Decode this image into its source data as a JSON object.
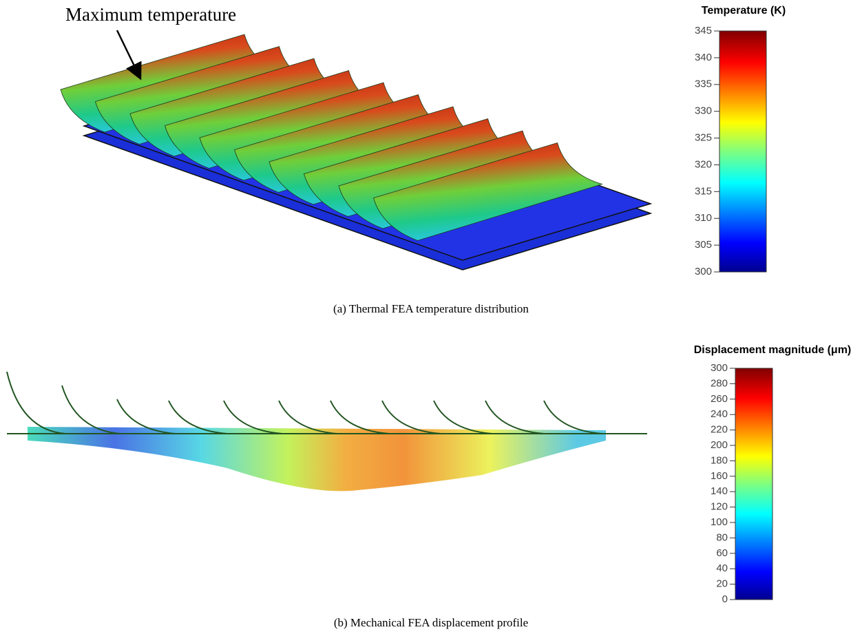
{
  "figures": [
    {
      "annotation": "Maximum temperature",
      "colorbar": {
        "title": "Temperature (K)",
        "lim": [
          300,
          345
        ],
        "ticks": [
          300,
          305,
          310,
          315,
          320,
          325,
          330,
          335,
          340,
          345
        ]
      },
      "caption": "(a) Thermal FEA temperature distribution"
    },
    {
      "colorbar": {
        "title": "Displacement magnitude (μm)",
        "lim": [
          0,
          300
        ],
        "ticks": [
          0,
          20,
          40,
          60,
          80,
          100,
          120,
          140,
          160,
          180,
          200,
          220,
          240,
          260,
          280,
          300
        ]
      },
      "caption": "(b) Mechanical FEA displacement profile"
    }
  ]
}
